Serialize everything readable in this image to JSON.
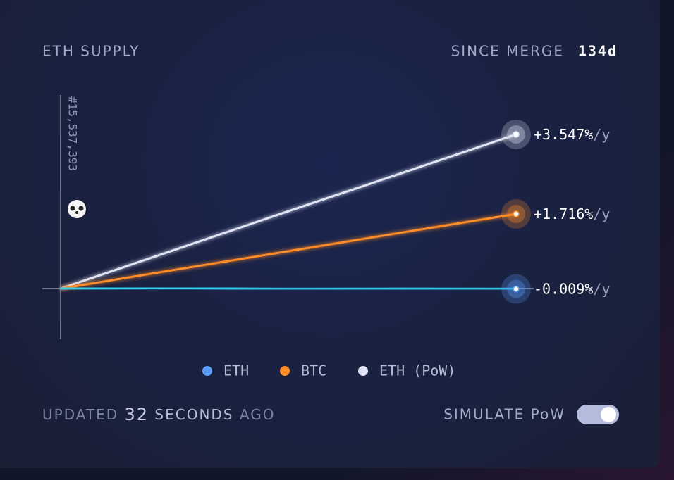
{
  "header": {
    "title": "ETH SUPPLY",
    "since_label": "SINCE MERGE",
    "since_value": "134d"
  },
  "chart_data": {
    "type": "line",
    "block_label": "#15,537,393",
    "categories": [
      null,
      null,
      null,
      null,
      null
    ],
    "ylim": [
      -1.166,
      4.453
    ],
    "value_label_suffix": "/y",
    "series": [
      {
        "name": "ETH",
        "color": "#5a9cf8",
        "line_color": "#2fd0ee",
        "values": [
          0,
          0.01,
          -0.01,
          -0.005,
          -0.009
        ],
        "value_labels": [
          null,
          null,
          null,
          null,
          "-0.009%"
        ]
      },
      {
        "name": "BTC",
        "color": "#ff8c26",
        "values": [
          0,
          0.43,
          0.86,
          1.29,
          1.716
        ],
        "value_labels": [
          null,
          null,
          null,
          null,
          "+1.716%"
        ]
      },
      {
        "name": "ETH (PoW)",
        "color": "#e1e4f4",
        "values": [
          0,
          0.89,
          1.78,
          2.66,
          3.547
        ],
        "value_labels": [
          null,
          null,
          null,
          null,
          "+3.547%"
        ]
      }
    ]
  },
  "footer": {
    "updated": "UPDATED",
    "amount": "32",
    "unit": "SECONDS",
    "ago": "AGO",
    "toggle_label": "SIMULATE PoW"
  }
}
